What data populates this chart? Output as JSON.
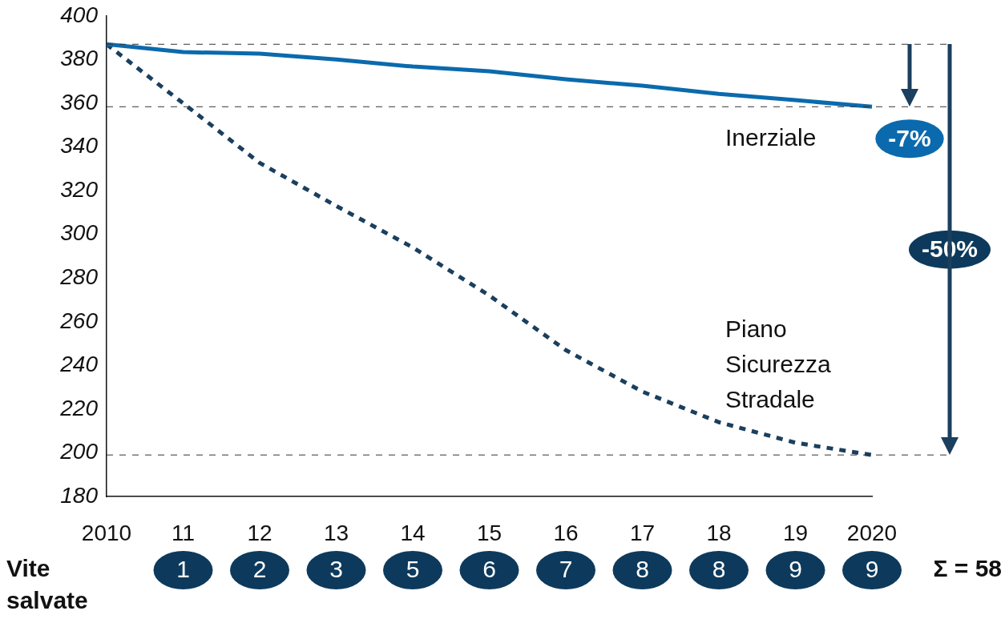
{
  "chart_data": {
    "type": "line",
    "categories": [
      "2010",
      "11",
      "12",
      "13",
      "14",
      "15",
      "16",
      "17",
      "18",
      "19",
      "2020"
    ],
    "series": [
      {
        "name": "Inerziale",
        "color": "#0b6aad",
        "line_style": "solid",
        "values": [
          387,
          383.4,
          382.7,
          380,
          376.8,
          374.6,
          371,
          368,
          364.3,
          361.4,
          358.4
        ]
      },
      {
        "name": "Piano Sicurezza Stradale",
        "color": "#1b3f5e",
        "line_style": "dashed",
        "values": [
          387,
          360,
          332.7,
          313,
          294,
          272,
          247,
          228,
          214,
          204.6,
          199
        ]
      }
    ],
    "ylim": [
      180,
      400
    ],
    "yticks": [
      180,
      200,
      220,
      240,
      260,
      280,
      300,
      320,
      340,
      360,
      380,
      400
    ],
    "grid": false,
    "legend": false,
    "marker": "none",
    "ref_lines": [
      {
        "axis": "y",
        "value": 387,
        "color": "#333333",
        "line_style": "dashed"
      },
      {
        "axis": "y",
        "value": 358.4,
        "color": "#333333",
        "line_style": "dashed"
      },
      {
        "axis": "y",
        "value": 199,
        "color": "#333333",
        "line_style": "dashed"
      }
    ],
    "annotations": [
      "-7%",
      "-50%",
      "Vite salvate",
      "Σ = 58",
      "1",
      "2",
      "3",
      "5",
      "6",
      "7",
      "8",
      "8",
      "9",
      "9"
    ]
  }
}
